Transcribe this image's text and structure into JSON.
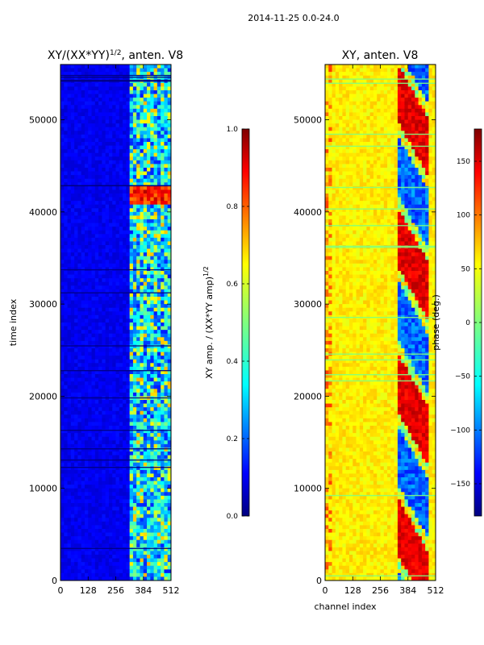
{
  "suptitle": "2014-11-25 0.0-24.0",
  "colors": {
    "jet": [
      "#00007f",
      "#0000ff",
      "#007fff",
      "#00ffff",
      "#7fff7f",
      "#ffff00",
      "#ff7f00",
      "#ff0000",
      "#7f0000"
    ]
  },
  "chart_data": [
    {
      "type": "heatmap",
      "title_text": "XY/(XX*YY)",
      "title_sup": "1/2",
      "title_suffix": ", anten. V8",
      "ylabel": "time index",
      "xlabel": "",
      "xlim": [
        0,
        512
      ],
      "ylim": [
        0,
        56000
      ],
      "xticks": [
        "0",
        "128",
        "256",
        "384",
        "512"
      ],
      "xtick_values": [
        0,
        128,
        256,
        384,
        512
      ],
      "yticks": [
        "0",
        "10000",
        "20000",
        "30000",
        "40000",
        "50000"
      ],
      "ytick_values": [
        0,
        10000,
        20000,
        30000,
        40000,
        50000
      ],
      "colormap": "jet",
      "colorbar": {
        "label_text": "XY amp. / (XX*YY amp)",
        "label_sup": "1/2",
        "range": [
          0,
          1
        ],
        "ticks": [
          "0.0",
          "0.2",
          "0.4",
          "0.6",
          "0.8",
          "1.0"
        ],
        "tick_values": [
          0,
          0.2,
          0.4,
          0.6,
          0.8,
          1.0
        ]
      }
    },
    {
      "type": "heatmap",
      "title_text": "XY, anten. V8",
      "ylabel": "",
      "xlabel": "channel index",
      "xlim": [
        0,
        512
      ],
      "ylim": [
        0,
        56000
      ],
      "xticks": [
        "0",
        "128",
        "256",
        "384",
        "512"
      ],
      "xtick_values": [
        0,
        128,
        256,
        384,
        512
      ],
      "yticks": [
        "0",
        "10000",
        "20000",
        "30000",
        "40000",
        "50000"
      ],
      "ytick_values": [
        0,
        10000,
        20000,
        30000,
        40000,
        50000
      ],
      "colormap": "jet",
      "colorbar": {
        "label_text": "phase (deg.)",
        "range": [
          -180,
          180
        ],
        "ticks": [
          "−150",
          "−100",
          "−50",
          "0",
          "50",
          "100",
          "150"
        ],
        "tick_values": [
          -150,
          -100,
          -50,
          0,
          50,
          100,
          150
        ]
      }
    }
  ]
}
